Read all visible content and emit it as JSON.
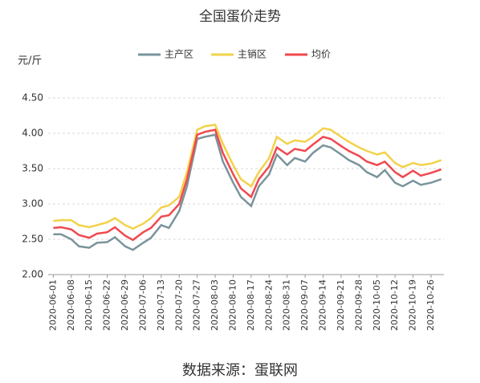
{
  "chart_data": {
    "type": "line",
    "title": "全国蛋价走势",
    "y_label": "元/斤",
    "source": "数据来源：蛋联网",
    "x": [
      "2020-06-01",
      "2020-06-04",
      "2020-06-08",
      "2020-06-11",
      "2020-06-15",
      "2020-06-18",
      "2020-06-22",
      "2020-06-25",
      "2020-06-29",
      "2020-07-02",
      "2020-07-06",
      "2020-07-09",
      "2020-07-13",
      "2020-07-16",
      "2020-07-20",
      "2020-07-23",
      "2020-07-27",
      "2020-07-30",
      "2020-08-03",
      "2020-08-06",
      "2020-08-10",
      "2020-08-13",
      "2020-08-17",
      "2020-08-20",
      "2020-08-24",
      "2020-08-27",
      "2020-08-31",
      "2020-09-03",
      "2020-09-07",
      "2020-09-10",
      "2020-09-14",
      "2020-09-17",
      "2020-09-21",
      "2020-09-24",
      "2020-09-28",
      "2020-10-01",
      "2020-10-05",
      "2020-10-08",
      "2020-10-12",
      "2020-10-15",
      "2020-10-19",
      "2020-10-22",
      "2020-10-26",
      "2020-10-30"
    ],
    "series": [
      {
        "name": "主产区",
        "color": "#7a949c",
        "values": [
          2.57,
          2.57,
          2.5,
          2.4,
          2.38,
          2.45,
          2.46,
          2.53,
          2.4,
          2.35,
          2.45,
          2.52,
          2.7,
          2.66,
          2.9,
          3.25,
          3.92,
          3.95,
          3.98,
          3.6,
          3.3,
          3.1,
          2.97,
          3.25,
          3.42,
          3.7,
          3.55,
          3.65,
          3.6,
          3.72,
          3.83,
          3.8,
          3.7,
          3.62,
          3.55,
          3.45,
          3.38,
          3.48,
          3.3,
          3.25,
          3.33,
          3.27,
          3.3,
          3.35
        ]
      },
      {
        "name": "主销区",
        "color": "#f2d24a",
        "values": [
          2.76,
          2.77,
          2.77,
          2.7,
          2.67,
          2.7,
          2.74,
          2.8,
          2.7,
          2.65,
          2.72,
          2.8,
          2.95,
          2.98,
          3.1,
          3.45,
          4.05,
          4.1,
          4.12,
          3.85,
          3.55,
          3.35,
          3.25,
          3.45,
          3.65,
          3.95,
          3.85,
          3.9,
          3.88,
          3.95,
          4.07,
          4.05,
          3.95,
          3.88,
          3.8,
          3.75,
          3.7,
          3.73,
          3.58,
          3.52,
          3.58,
          3.55,
          3.57,
          3.62
        ]
      },
      {
        "name": "均价",
        "color": "#f0494f",
        "values": [
          2.66,
          2.67,
          2.64,
          2.56,
          2.52,
          2.58,
          2.6,
          2.67,
          2.55,
          2.49,
          2.6,
          2.66,
          2.82,
          2.84,
          3.0,
          3.35,
          3.98,
          4.02,
          4.05,
          3.72,
          3.42,
          3.22,
          3.1,
          3.35,
          3.53,
          3.8,
          3.7,
          3.78,
          3.75,
          3.84,
          3.95,
          3.92,
          3.82,
          3.75,
          3.68,
          3.6,
          3.55,
          3.6,
          3.45,
          3.38,
          3.47,
          3.4,
          3.44,
          3.49
        ]
      }
    ],
    "xlim": [
      "2020-05-30",
      "2020-10-31"
    ],
    "xticks": [
      "2020-06-01",
      "2020-06-08",
      "2020-06-15",
      "2020-06-22",
      "2020-06-29",
      "2020-07-06",
      "2020-07-13",
      "2020-07-20",
      "2020-07-27",
      "2020-08-03",
      "2020-08-10",
      "2020-08-17",
      "2020-08-24",
      "2020-08-31",
      "2020-09-07",
      "2020-09-14",
      "2020-09-21",
      "2020-09-28",
      "2020-10-05",
      "2020-10-12",
      "2020-10-19",
      "2020-10-26"
    ],
    "ylim": [
      2,
      4.5
    ],
    "yticks": [
      {
        "value": 2,
        "label": "2.00"
      },
      {
        "value": 2.5,
        "label": "2.50"
      },
      {
        "value": 3,
        "label": "3.00"
      },
      {
        "value": 3.5,
        "label": "3.50"
      },
      {
        "value": 4,
        "label": "4.00"
      },
      {
        "value": 4.5,
        "label": "4.50"
      }
    ],
    "grid": true
  }
}
